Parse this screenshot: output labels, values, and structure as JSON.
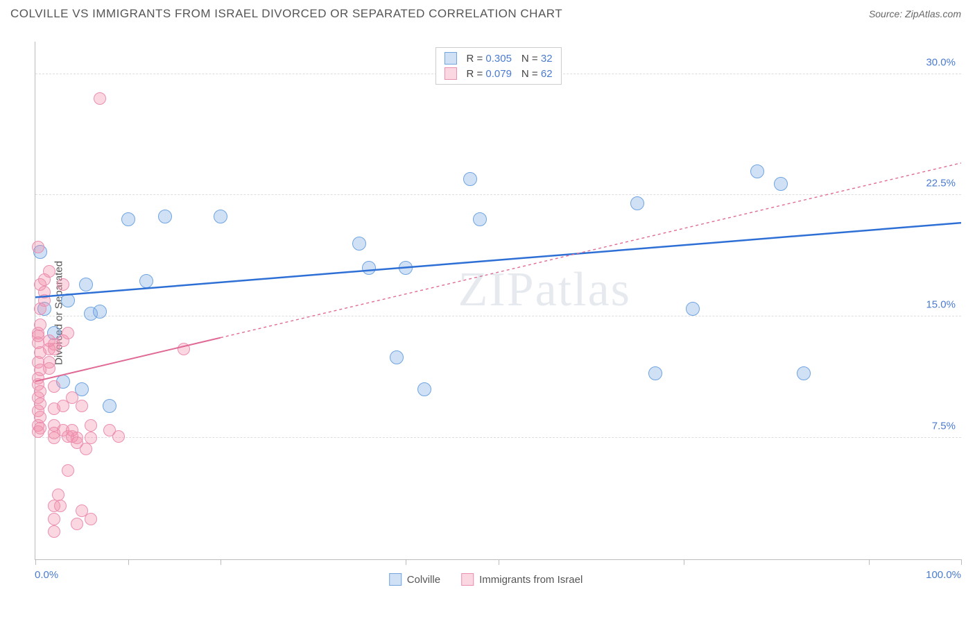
{
  "header": {
    "title": "COLVILLE VS IMMIGRANTS FROM ISRAEL DIVORCED OR SEPARATED CORRELATION CHART",
    "source": "Source: ZipAtlas.com"
  },
  "watermark": "ZIPatlas",
  "ylabel": "Divorced or Separated",
  "chart": {
    "type": "scatter",
    "background_color": "#ffffff",
    "grid_color": "#dddddd",
    "axis_color": "#bbbbbb",
    "xlim": [
      0,
      100
    ],
    "ylim": [
      0,
      32
    ],
    "x_axis": {
      "ticks": [
        0,
        10,
        20,
        40,
        50,
        70,
        90,
        100
      ],
      "labels": [
        {
          "pos": 0,
          "text": "0.0%"
        },
        {
          "pos": 100,
          "text": "100.0%"
        }
      ]
    },
    "y_axis": {
      "gridlines": [
        7.5,
        15.0,
        22.5,
        30.0
      ],
      "labels": [
        {
          "pos": 7.5,
          "text": "7.5%"
        },
        {
          "pos": 15.0,
          "text": "15.0%"
        },
        {
          "pos": 22.5,
          "text": "22.5%"
        },
        {
          "pos": 30.0,
          "text": "30.0%"
        }
      ]
    },
    "series": [
      {
        "name": "Colville",
        "color_fill": "rgba(120,170,230,0.35)",
        "color_stroke": "#6fa4e0",
        "marker_radius": 10,
        "trend": {
          "x1": 0,
          "y1": 16.2,
          "x2": 100,
          "y2": 20.8,
          "solid_until_x": 100,
          "stroke": "#2e6fd6",
          "width": 2.5
        },
        "R": "0.305",
        "N": "32",
        "points": [
          [
            0.5,
            19
          ],
          [
            1,
            15.5
          ],
          [
            2,
            14
          ],
          [
            3,
            11
          ],
          [
            3.5,
            16
          ],
          [
            5,
            10.5
          ],
          [
            5.5,
            17
          ],
          [
            6,
            15.2
          ],
          [
            7,
            15.3
          ],
          [
            8,
            9.5
          ],
          [
            10,
            21
          ],
          [
            12,
            17.2
          ],
          [
            14,
            21.2
          ],
          [
            20,
            21.2
          ],
          [
            35,
            19.5
          ],
          [
            36,
            18
          ],
          [
            39,
            12.5
          ],
          [
            40,
            18
          ],
          [
            42,
            10.5
          ],
          [
            47,
            23.5
          ],
          [
            48,
            21
          ],
          [
            65,
            22
          ],
          [
            67,
            11.5
          ],
          [
            71,
            15.5
          ],
          [
            78,
            24
          ],
          [
            80.5,
            23.2
          ],
          [
            83,
            11.5
          ]
        ]
      },
      {
        "name": "Immigrants from Israel",
        "color_fill": "rgba(240,140,170,0.35)",
        "color_stroke": "#eb8fb0",
        "marker_radius": 9,
        "trend": {
          "x1": 0,
          "y1": 11,
          "x2": 100,
          "y2": 24.5,
          "solid_until_x": 20,
          "stroke": "#e06a95",
          "width": 2
        },
        "R": "0.079",
        "N": "62",
        "points": [
          [
            0.3,
            19.3
          ],
          [
            0.5,
            17
          ],
          [
            0.5,
            15.5
          ],
          [
            0.5,
            14.5
          ],
          [
            0.3,
            14
          ],
          [
            0.3,
            13.8
          ],
          [
            0.3,
            13.4
          ],
          [
            0.5,
            12.8
          ],
          [
            0.3,
            12.2
          ],
          [
            0.5,
            11.7
          ],
          [
            0.3,
            11.2
          ],
          [
            0.3,
            10.8
          ],
          [
            0.5,
            10.4
          ],
          [
            0.3,
            10
          ],
          [
            0.5,
            9.6
          ],
          [
            0.3,
            9.2
          ],
          [
            0.5,
            8.8
          ],
          [
            0.3,
            8.3
          ],
          [
            0.5,
            8.1
          ],
          [
            0.3,
            7.9
          ],
          [
            1,
            17.3
          ],
          [
            1,
            16.5
          ],
          [
            1,
            16
          ],
          [
            1.5,
            17.8
          ],
          [
            1.5,
            13.5
          ],
          [
            1.5,
            13
          ],
          [
            1.5,
            12.2
          ],
          [
            1.5,
            11.8
          ],
          [
            2,
            13.3
          ],
          [
            2,
            13
          ],
          [
            2,
            10.7
          ],
          [
            2,
            9.3
          ],
          [
            2,
            8.3
          ],
          [
            2,
            7.8
          ],
          [
            2,
            7.5
          ],
          [
            2,
            3.3
          ],
          [
            2,
            2.5
          ],
          [
            2,
            1.7
          ],
          [
            2.5,
            4
          ],
          [
            2.7,
            3.3
          ],
          [
            3,
            17
          ],
          [
            3,
            13.5
          ],
          [
            3,
            9.5
          ],
          [
            3,
            8
          ],
          [
            3.5,
            14
          ],
          [
            3.5,
            7.6
          ],
          [
            3.5,
            5.5
          ],
          [
            4,
            10
          ],
          [
            4,
            8
          ],
          [
            4,
            7.6
          ],
          [
            4.5,
            7.5
          ],
          [
            4.5,
            7.2
          ],
          [
            4.5,
            2.2
          ],
          [
            5,
            9.5
          ],
          [
            5,
            3
          ],
          [
            5.5,
            6.8
          ],
          [
            6,
            8.3
          ],
          [
            6,
            7.5
          ],
          [
            6,
            2.5
          ],
          [
            7,
            28.5
          ],
          [
            8,
            8
          ],
          [
            9,
            7.6
          ],
          [
            16,
            13
          ]
        ]
      }
    ]
  },
  "legend_top": {
    "rows": [
      {
        "swatch_fill": "rgba(120,170,230,0.35)",
        "swatch_stroke": "#6fa4e0",
        "r_label": "R =",
        "r_value": "0.305",
        "n_label": "N =",
        "n_value": "32"
      },
      {
        "swatch_fill": "rgba(240,140,170,0.35)",
        "swatch_stroke": "#eb8fb0",
        "r_label": "R =",
        "r_value": "0.079",
        "n_label": "N =",
        "n_value": "62"
      }
    ]
  },
  "legend_bottom": {
    "items": [
      {
        "swatch_fill": "rgba(120,170,230,0.35)",
        "swatch_stroke": "#6fa4e0",
        "label": "Colville"
      },
      {
        "swatch_fill": "rgba(240,140,170,0.35)",
        "swatch_stroke": "#eb8fb0",
        "label": "Immigrants from Israel"
      }
    ]
  }
}
